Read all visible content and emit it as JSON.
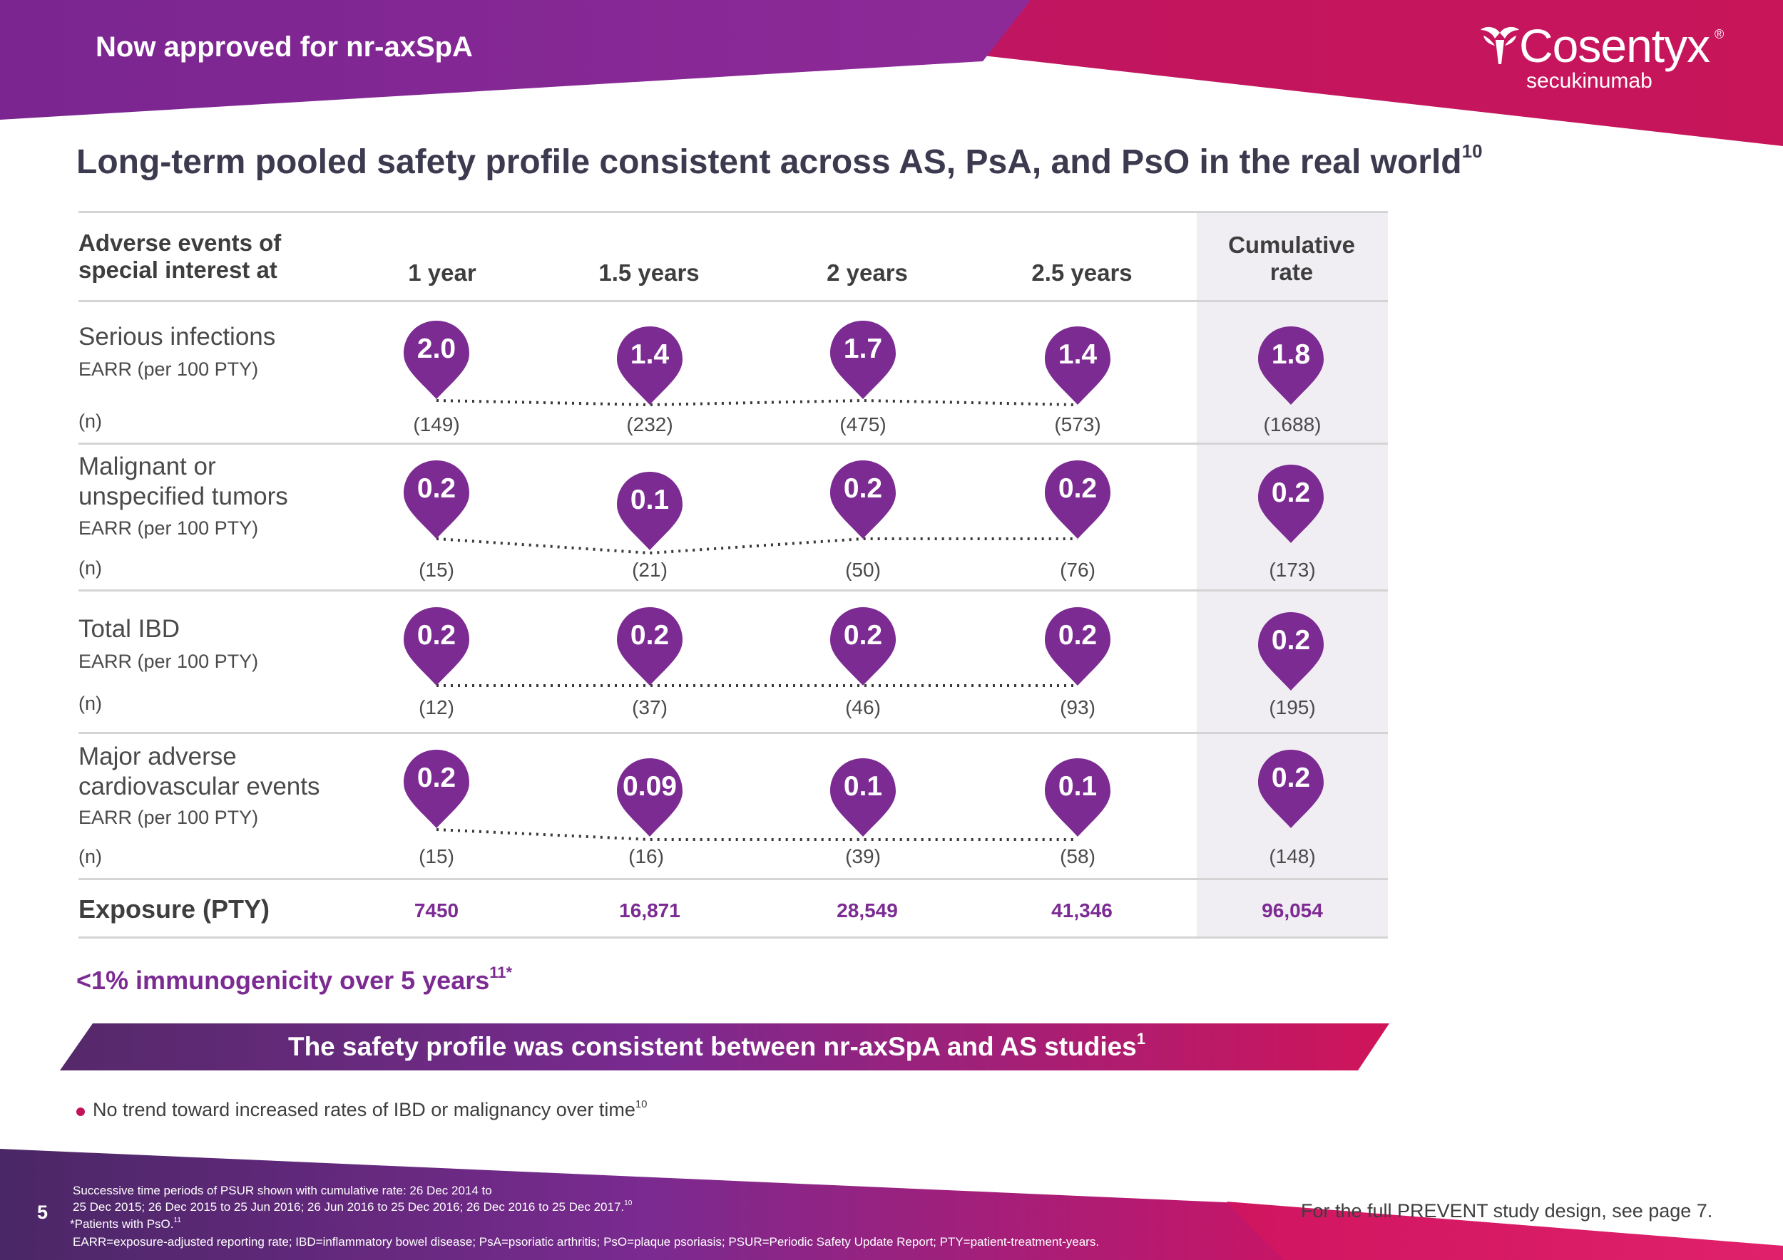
{
  "header": {
    "tagline": "Now approved for nr-axSpA",
    "brand": "Cosentyx",
    "brand_mark": "®",
    "brand_generic": "secukinumab"
  },
  "title": {
    "text": "Long-term pooled safety profile consistent across AS, PsA, and PsO in the real world",
    "ref": "10"
  },
  "table": {
    "row_header_line1": "Adverse events of",
    "row_header_line2": "special interest at",
    "columns": [
      "1 year",
      "1.5 years",
      "2 years",
      "2.5 years"
    ],
    "cumulative_line1": "Cumulative",
    "cumulative_line2": "rate",
    "earr_label": "EARR (per 100 PTY)",
    "n_label": "(n)",
    "rows": [
      {
        "label_line1": "Serious infections",
        "label_line2": "",
        "values": [
          "2.0",
          "1.4",
          "1.7",
          "1.4"
        ],
        "cumulative": "1.8",
        "n": [
          "(149)",
          "(232)",
          "(475)",
          "(573)"
        ],
        "n_cumulative": "(1688)"
      },
      {
        "label_line1": "Malignant or",
        "label_line2": "unspecified tumors",
        "values": [
          "0.2",
          "0.1",
          "0.2",
          "0.2"
        ],
        "cumulative": "0.2",
        "n": [
          "(15)",
          "(21)",
          "(50)",
          "(76)"
        ],
        "n_cumulative": "(173)"
      },
      {
        "label_line1": "Total IBD",
        "label_line2": "",
        "values": [
          "0.2",
          "0.2",
          "0.2",
          "0.2"
        ],
        "cumulative": "0.2",
        "n": [
          "(12)",
          "(37)",
          "(46)",
          "(93)"
        ],
        "n_cumulative": "(195)"
      },
      {
        "label_line1": "Major adverse",
        "label_line2": "cardiovascular events",
        "values": [
          "0.2",
          "0.09",
          "0.1",
          "0.1"
        ],
        "cumulative": "0.2",
        "n": [
          "(15)",
          "(16)",
          "(39)",
          "(58)"
        ],
        "n_cumulative": "(148)"
      }
    ],
    "exposure_label": "Exposure (PTY)",
    "exposure": [
      "7450",
      "16,871",
      "28,549",
      "41,346"
    ],
    "exposure_cumulative": "96,054"
  },
  "immunogenicity": {
    "text": "<1% immunogenicity over 5 years",
    "ref": "11*"
  },
  "banner": {
    "text": "The safety profile was consistent between nr-axSpA and AS studies",
    "ref": "1"
  },
  "bullet": {
    "text": "No trend toward increased rates of IBD or malignancy over time",
    "ref": "10"
  },
  "footer": {
    "page_number": "5",
    "line1": "Successive time periods of PSUR shown with cumulative rate: 26 Dec 2014 to",
    "line2": "25 Dec 2015; 26 Dec 2015 to 25 Jun 2016; 26 Jun 2016 to 25 Dec 2016; 26 Dec 2016 to 25 Dec 2017.",
    "line2_ref": "10",
    "line3": "*Patients with PsO.",
    "line3_ref": "11",
    "line4": "EARR=exposure-adjusted reporting rate; IBD=inflammatory bowel disease; PsA=psoriatic arthritis; PsO=plaque psoriasis; PSUR=Periodic Safety Update Report; PTY=patient-treatment-years.",
    "right_note": "For the full PREVENT study design, see page 7."
  },
  "colors": {
    "purple": "#7c2b93",
    "magenta": "#c0135a",
    "header_purple": "#8a2a96",
    "text": "#3e3e3e"
  }
}
